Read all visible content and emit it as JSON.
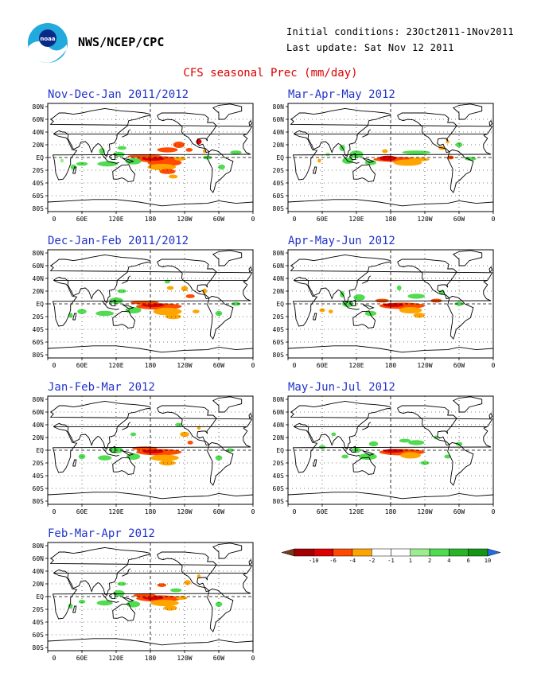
{
  "header": {
    "agency": "NWS/NCEP/CPC",
    "initial_conditions": "Initial conditions: 23Oct2011-1Nov2011",
    "last_update": "Last update: Sat Nov 12 2011",
    "title": "CFS seasonal Prec (mm/day)"
  },
  "axes": {
    "lat_labels": [
      "80N",
      "60N",
      "40N",
      "20N",
      "EQ",
      "20S",
      "40S",
      "60S",
      "80S"
    ],
    "lon_labels": [
      "0",
      "60E",
      "120E",
      "180",
      "120W",
      "60W",
      "0"
    ]
  },
  "colors": {
    "land_outline": "#000000",
    "anomaly_colors": [
      "#7a3a1a",
      "#a50000",
      "#dc0000",
      "#ff4a00",
      "#ffa500",
      "#ffffff",
      "#ffffff",
      "#9aee90",
      "#50dc50",
      "#28b428",
      "#149614",
      "#1e6ee6"
    ]
  },
  "legend": {
    "labels": [
      "-10",
      "-6",
      "-4",
      "-2",
      "-1",
      "1",
      "2",
      "4",
      "6",
      "10"
    ]
  },
  "panels": [
    {
      "title": "Nov-Dec-Jan 2011/2012"
    },
    {
      "title": "Mar-Apr-May 2012"
    },
    {
      "title": "Dec-Jan-Feb 2011/2012"
    },
    {
      "title": "Apr-May-Jun 2012"
    },
    {
      "title": "Jan-Feb-Mar 2012"
    },
    {
      "title": "May-Jun-Jul 2012"
    },
    {
      "title": "Feb-Mar-Apr 2012"
    }
  ]
}
